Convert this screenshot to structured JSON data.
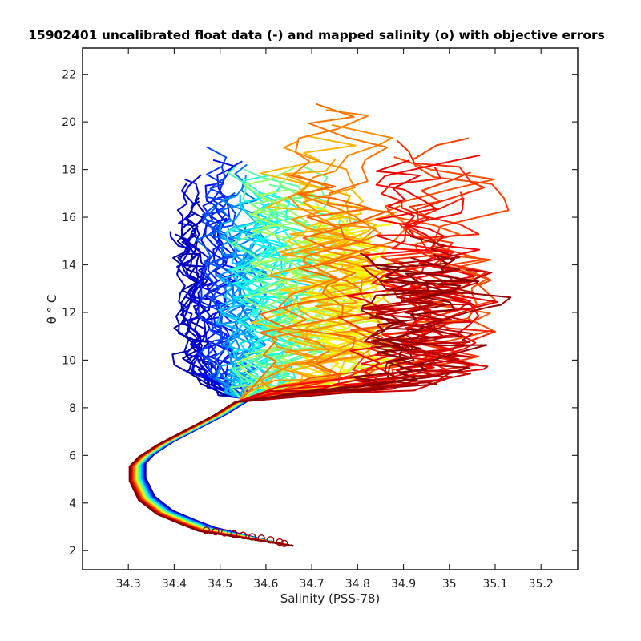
{
  "chart_data": {
    "type": "line",
    "title": "15902401 uncalibrated float data (-) and mapped salinity (o) with objective errors",
    "xlabel": "Salinity (PSS-78)",
    "ylabel": "θ ° C",
    "xlim": [
      34.2,
      35.28
    ],
    "ylim": [
      1.2,
      23.1
    ],
    "xticks": [
      "34.3",
      "34.4",
      "34.5",
      "34.6",
      "34.7",
      "34.8",
      "34.9",
      "35",
      "35.1",
      "35.2"
    ],
    "yticks": [
      "2",
      "4",
      "6",
      "8",
      "10",
      "12",
      "14",
      "16",
      "18",
      "20",
      "22"
    ],
    "grid": false,
    "legend": "none",
    "colormap": [
      "#00008f",
      "#0000ff",
      "#0080ff",
      "#00ffff",
      "#80ff80",
      "#ffff00",
      "#ff8000",
      "#ff0000",
      "#800000"
    ],
    "deep_profile": {
      "points": [
        [
          34.47,
          2.9
        ],
        [
          34.43,
          3.2
        ],
        [
          34.38,
          3.6
        ],
        [
          34.34,
          4.2
        ],
        [
          34.32,
          5.0
        ],
        [
          34.32,
          5.6
        ],
        [
          34.34,
          6.0
        ],
        [
          34.38,
          6.5
        ],
        [
          34.44,
          7.1
        ],
        [
          34.5,
          7.7
        ],
        [
          34.55,
          8.3
        ]
      ],
      "spread": 0.035,
      "tail_end": [
        34.66,
        2.2
      ]
    },
    "mapped_salinity": {
      "marker": "o",
      "color": "#a00000",
      "points": [
        [
          34.47,
          2.85
        ],
        [
          34.49,
          2.8
        ],
        [
          34.51,
          2.75
        ],
        [
          34.53,
          2.7
        ],
        [
          34.55,
          2.64
        ],
        [
          34.57,
          2.58
        ],
        [
          34.59,
          2.52
        ],
        [
          34.61,
          2.45
        ],
        [
          34.63,
          2.36
        ],
        [
          34.64,
          2.3
        ]
      ]
    },
    "upper_profiles": [
      {
        "color": "#00008f",
        "x": [
          34.41,
          34.45
        ],
        "y": [
          11.0,
          19.0
        ]
      },
      {
        "color": "#0000ff",
        "x": [
          34.42,
          34.55
        ],
        "y": [
          10.0,
          19.5
        ]
      },
      {
        "color": "#0080ff",
        "x": [
          34.44,
          34.62
        ],
        "y": [
          10.5,
          18.5
        ]
      },
      {
        "color": "#00ffff",
        "x": [
          34.45,
          34.72
        ],
        "y": [
          10.5,
          18.0
        ]
      },
      {
        "color": "#80ff80",
        "x": [
          34.42,
          34.82
        ],
        "y": [
          10.0,
          19.0
        ]
      },
      {
        "color": "#ffff00",
        "x": [
          34.5,
          34.95
        ],
        "y": [
          9.5,
          17.5
        ]
      },
      {
        "color": "#ff8000",
        "x": [
          34.38,
          34.97
        ],
        "y": [
          9.0,
          22.0
        ]
      },
      {
        "color": "#ff0000",
        "x": [
          34.6,
          35.2
        ],
        "y": [
          9.0,
          20.8
        ]
      },
      {
        "color": "#800000",
        "x": [
          34.62,
          35.18
        ],
        "y": [
          9.0,
          15.2
        ]
      }
    ]
  }
}
